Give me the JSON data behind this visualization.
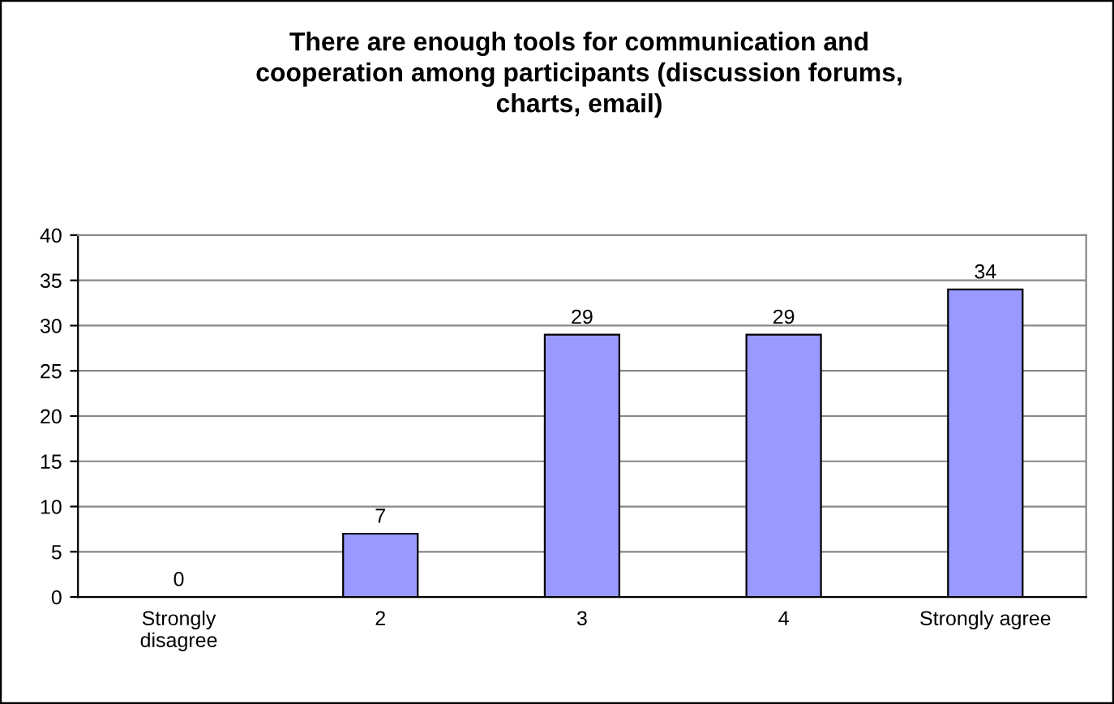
{
  "chart_data": {
    "type": "bar",
    "title": "There are enough tools for communication and\ncooperation among participants (discussion forums,\ncharts, email)",
    "categories": [
      "Strongly\ndisagree",
      "2",
      "3",
      "4",
      "Strongly agree"
    ],
    "values": [
      0,
      7,
      29,
      29,
      34
    ],
    "color": "#9999ff",
    "ylim": [
      0,
      40
    ],
    "yticks": [
      0,
      5,
      10,
      15,
      20,
      25,
      30,
      35,
      40
    ],
    "grid": "y",
    "data_labels": true,
    "legend": false
  }
}
